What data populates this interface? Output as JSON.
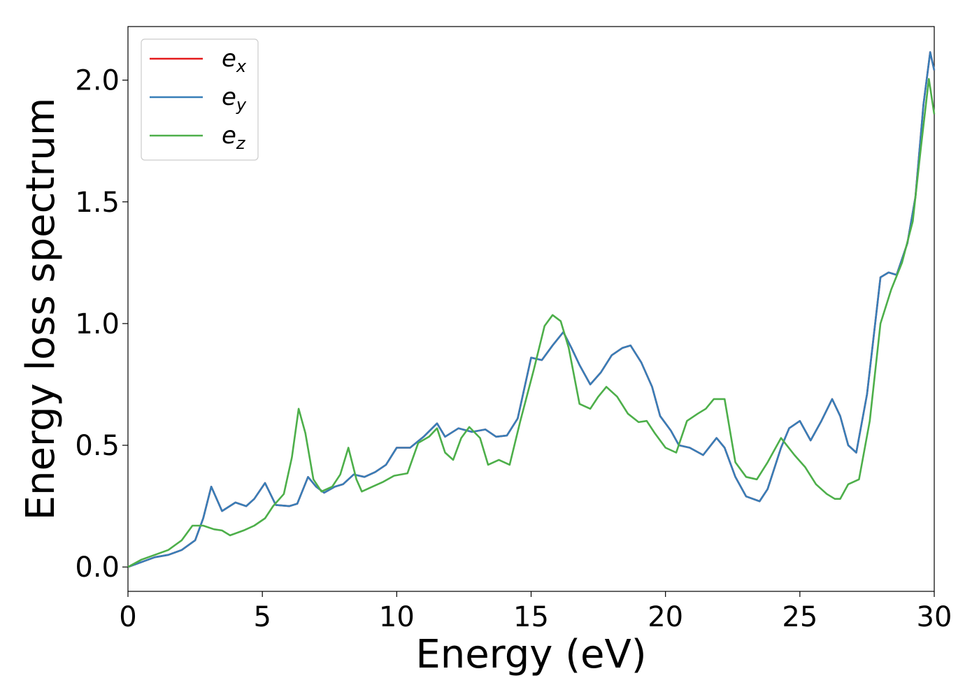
{
  "chart_data": {
    "type": "line",
    "xlabel": "Energy (eV)",
    "ylabel": "Energy loss spectrum",
    "xlim": [
      0,
      30
    ],
    "ylim": [
      -0.1,
      2.22
    ],
    "xticks": [
      0,
      5,
      10,
      15,
      20,
      25,
      30
    ],
    "xtick_labels": [
      "0",
      "5",
      "10",
      "15",
      "20",
      "25",
      "30"
    ],
    "yticks": [
      0.0,
      0.5,
      1.0,
      1.5,
      2.0
    ],
    "ytick_labels": [
      "0.0",
      "0.5",
      "1.0",
      "1.5",
      "2.0"
    ],
    "grid": false,
    "legend_position": "top-left",
    "series": [
      {
        "name": "e",
        "subscript": "x",
        "color": "#e41a1c",
        "points": [
          [
            0,
            0
          ],
          [
            0.5,
            0.02
          ],
          [
            1,
            0.04
          ],
          [
            1.5,
            0.05
          ],
          [
            2,
            0.07
          ],
          [
            2.5,
            0.11
          ],
          [
            2.8,
            0.2
          ],
          [
            3.1,
            0.33
          ],
          [
            3.5,
            0.23
          ],
          [
            4,
            0.265
          ],
          [
            4.4,
            0.25
          ],
          [
            4.7,
            0.28
          ],
          [
            5.1,
            0.345
          ],
          [
            5.5,
            0.255
          ],
          [
            6,
            0.25
          ],
          [
            6.3,
            0.26
          ],
          [
            6.7,
            0.37
          ],
          [
            7,
            0.33
          ],
          [
            7.3,
            0.305
          ],
          [
            7.7,
            0.33
          ],
          [
            8,
            0.34
          ],
          [
            8.4,
            0.38
          ],
          [
            8.8,
            0.37
          ],
          [
            9.2,
            0.39
          ],
          [
            9.6,
            0.42
          ],
          [
            10,
            0.49
          ],
          [
            10.5,
            0.49
          ],
          [
            11,
            0.535
          ],
          [
            11.5,
            0.59
          ],
          [
            11.8,
            0.535
          ],
          [
            12.3,
            0.57
          ],
          [
            12.8,
            0.555
          ],
          [
            13.3,
            0.565
          ],
          [
            13.7,
            0.535
          ],
          [
            14.1,
            0.54
          ],
          [
            14.5,
            0.61
          ],
          [
            15,
            0.86
          ],
          [
            15.4,
            0.85
          ],
          [
            15.8,
            0.91
          ],
          [
            16.2,
            0.965
          ],
          [
            16.5,
            0.9
          ],
          [
            16.8,
            0.83
          ],
          [
            17.2,
            0.75
          ],
          [
            17.6,
            0.8
          ],
          [
            18,
            0.87
          ],
          [
            18.4,
            0.9
          ],
          [
            18.7,
            0.91
          ],
          [
            19.1,
            0.84
          ],
          [
            19.5,
            0.74
          ],
          [
            19.8,
            0.62
          ],
          [
            20.2,
            0.56
          ],
          [
            20.5,
            0.5
          ],
          [
            20.9,
            0.49
          ],
          [
            21.4,
            0.46
          ],
          [
            21.9,
            0.53
          ],
          [
            22.2,
            0.49
          ],
          [
            22.6,
            0.37
          ],
          [
            23,
            0.29
          ],
          [
            23.5,
            0.27
          ],
          [
            23.8,
            0.32
          ],
          [
            24.3,
            0.49
          ],
          [
            24.6,
            0.57
          ],
          [
            25,
            0.6
          ],
          [
            25.4,
            0.52
          ],
          [
            25.8,
            0.6
          ],
          [
            26.2,
            0.69
          ],
          [
            26.5,
            0.62
          ],
          [
            26.8,
            0.5
          ],
          [
            27.1,
            0.47
          ],
          [
            27.5,
            0.71
          ],
          [
            28,
            1.19
          ],
          [
            28.3,
            1.21
          ],
          [
            28.6,
            1.2
          ],
          [
            29,
            1.33
          ],
          [
            29.3,
            1.52
          ],
          [
            29.6,
            1.9
          ],
          [
            29.85,
            2.115
          ],
          [
            30,
            2.04
          ]
        ]
      },
      {
        "name": "e",
        "subscript": "y",
        "color": "#377eb8",
        "points": [
          [
            0,
            0
          ],
          [
            0.5,
            0.02
          ],
          [
            1,
            0.04
          ],
          [
            1.5,
            0.05
          ],
          [
            2,
            0.07
          ],
          [
            2.5,
            0.11
          ],
          [
            2.8,
            0.2
          ],
          [
            3.1,
            0.33
          ],
          [
            3.5,
            0.23
          ],
          [
            4,
            0.265
          ],
          [
            4.4,
            0.25
          ],
          [
            4.7,
            0.28
          ],
          [
            5.1,
            0.345
          ],
          [
            5.5,
            0.255
          ],
          [
            6,
            0.25
          ],
          [
            6.3,
            0.26
          ],
          [
            6.7,
            0.37
          ],
          [
            7,
            0.33
          ],
          [
            7.3,
            0.305
          ],
          [
            7.7,
            0.33
          ],
          [
            8,
            0.34
          ],
          [
            8.4,
            0.38
          ],
          [
            8.8,
            0.37
          ],
          [
            9.2,
            0.39
          ],
          [
            9.6,
            0.42
          ],
          [
            10,
            0.49
          ],
          [
            10.5,
            0.49
          ],
          [
            11,
            0.535
          ],
          [
            11.5,
            0.59
          ],
          [
            11.8,
            0.535
          ],
          [
            12.3,
            0.57
          ],
          [
            12.8,
            0.555
          ],
          [
            13.3,
            0.565
          ],
          [
            13.7,
            0.535
          ],
          [
            14.1,
            0.54
          ],
          [
            14.5,
            0.61
          ],
          [
            15,
            0.86
          ],
          [
            15.4,
            0.85
          ],
          [
            15.8,
            0.91
          ],
          [
            16.2,
            0.965
          ],
          [
            16.5,
            0.9
          ],
          [
            16.8,
            0.83
          ],
          [
            17.2,
            0.75
          ],
          [
            17.6,
            0.8
          ],
          [
            18,
            0.87
          ],
          [
            18.4,
            0.9
          ],
          [
            18.7,
            0.91
          ],
          [
            19.1,
            0.84
          ],
          [
            19.5,
            0.74
          ],
          [
            19.8,
            0.62
          ],
          [
            20.2,
            0.56
          ],
          [
            20.5,
            0.5
          ],
          [
            20.9,
            0.49
          ],
          [
            21.4,
            0.46
          ],
          [
            21.9,
            0.53
          ],
          [
            22.2,
            0.49
          ],
          [
            22.6,
            0.37
          ],
          [
            23,
            0.29
          ],
          [
            23.5,
            0.27
          ],
          [
            23.8,
            0.32
          ],
          [
            24.3,
            0.49
          ],
          [
            24.6,
            0.57
          ],
          [
            25,
            0.6
          ],
          [
            25.4,
            0.52
          ],
          [
            25.8,
            0.6
          ],
          [
            26.2,
            0.69
          ],
          [
            26.5,
            0.62
          ],
          [
            26.8,
            0.5
          ],
          [
            27.1,
            0.47
          ],
          [
            27.5,
            0.71
          ],
          [
            28,
            1.19
          ],
          [
            28.3,
            1.21
          ],
          [
            28.6,
            1.2
          ],
          [
            29,
            1.33
          ],
          [
            29.3,
            1.52
          ],
          [
            29.6,
            1.9
          ],
          [
            29.85,
            2.115
          ],
          [
            30,
            2.04
          ]
        ]
      },
      {
        "name": "e",
        "subscript": "z",
        "color": "#4daf4a",
        "points": [
          [
            0,
            0
          ],
          [
            0.5,
            0.03
          ],
          [
            1,
            0.05
          ],
          [
            1.5,
            0.07
          ],
          [
            2,
            0.11
          ],
          [
            2.4,
            0.17
          ],
          [
            2.8,
            0.17
          ],
          [
            3.2,
            0.155
          ],
          [
            3.5,
            0.15
          ],
          [
            3.8,
            0.13
          ],
          [
            4.3,
            0.15
          ],
          [
            4.7,
            0.17
          ],
          [
            5.1,
            0.2
          ],
          [
            5.4,
            0.25
          ],
          [
            5.8,
            0.3
          ],
          [
            6.1,
            0.45
          ],
          [
            6.35,
            0.65
          ],
          [
            6.6,
            0.55
          ],
          [
            6.9,
            0.36
          ],
          [
            7.2,
            0.31
          ],
          [
            7.6,
            0.33
          ],
          [
            7.9,
            0.38
          ],
          [
            8.2,
            0.49
          ],
          [
            8.5,
            0.36
          ],
          [
            8.7,
            0.31
          ],
          [
            9.1,
            0.33
          ],
          [
            9.5,
            0.35
          ],
          [
            9.9,
            0.375
          ],
          [
            10.4,
            0.385
          ],
          [
            10.8,
            0.51
          ],
          [
            11.2,
            0.535
          ],
          [
            11.5,
            0.57
          ],
          [
            11.8,
            0.47
          ],
          [
            12.1,
            0.44
          ],
          [
            12.4,
            0.53
          ],
          [
            12.7,
            0.575
          ],
          [
            13.1,
            0.53
          ],
          [
            13.4,
            0.42
          ],
          [
            13.8,
            0.44
          ],
          [
            14.2,
            0.42
          ],
          [
            14.6,
            0.6
          ],
          [
            15.1,
            0.81
          ],
          [
            15.5,
            0.99
          ],
          [
            15.8,
            1.035
          ],
          [
            16.1,
            1.01
          ],
          [
            16.4,
            0.9
          ],
          [
            16.8,
            0.67
          ],
          [
            17.2,
            0.65
          ],
          [
            17.5,
            0.7
          ],
          [
            17.8,
            0.74
          ],
          [
            18.2,
            0.7
          ],
          [
            18.6,
            0.63
          ],
          [
            19,
            0.595
          ],
          [
            19.3,
            0.6
          ],
          [
            19.6,
            0.55
          ],
          [
            20,
            0.49
          ],
          [
            20.4,
            0.47
          ],
          [
            20.8,
            0.6
          ],
          [
            21.2,
            0.63
          ],
          [
            21.5,
            0.65
          ],
          [
            21.8,
            0.69
          ],
          [
            22.2,
            0.69
          ],
          [
            22.6,
            0.43
          ],
          [
            23,
            0.37
          ],
          [
            23.4,
            0.36
          ],
          [
            23.8,
            0.43
          ],
          [
            24.3,
            0.53
          ],
          [
            24.8,
            0.46
          ],
          [
            25.2,
            0.41
          ],
          [
            25.6,
            0.34
          ],
          [
            26,
            0.3
          ],
          [
            26.3,
            0.28
          ],
          [
            26.5,
            0.28
          ],
          [
            26.8,
            0.34
          ],
          [
            27.2,
            0.36
          ],
          [
            27.6,
            0.6
          ],
          [
            28,
            1.0
          ],
          [
            28.4,
            1.14
          ],
          [
            28.8,
            1.25
          ],
          [
            29.2,
            1.42
          ],
          [
            29.5,
            1.72
          ],
          [
            29.8,
            2.005
          ],
          [
            30,
            1.86
          ]
        ]
      }
    ]
  }
}
